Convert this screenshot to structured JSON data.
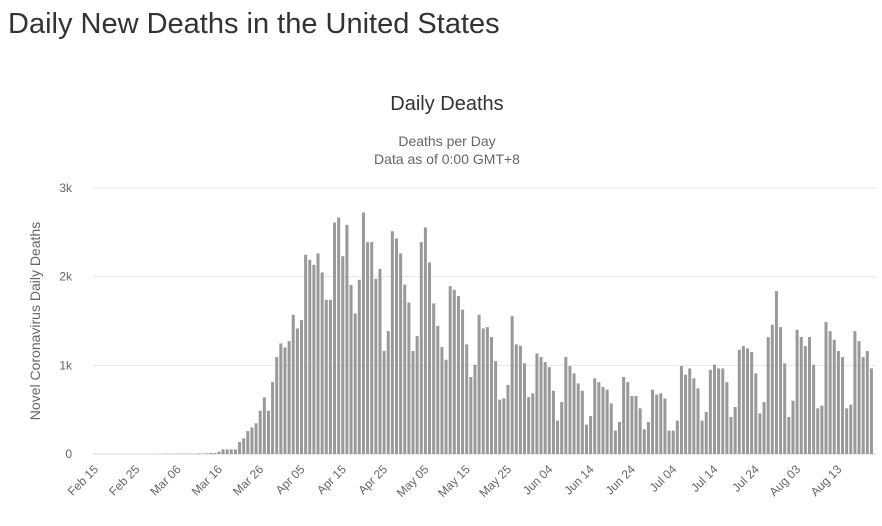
{
  "page": {
    "title": "Daily New Deaths in the United States"
  },
  "colors": {
    "bar": "#999999",
    "grid": "#e6e6e6",
    "axis": "#ccd6eb"
  },
  "chart_data": {
    "type": "bar",
    "title": "Daily Deaths",
    "subtitle": "Deaths per Day",
    "subtitle2": "Data as of 0:00 GMT+8",
    "xlabel": "",
    "ylabel": "Novel Coronavirus Daily Deaths",
    "start_date": "Feb 15",
    "ylim": [
      0,
      3000
    ],
    "yticks": [
      {
        "value": 0,
        "label": "0"
      },
      {
        "value": 1000,
        "label": "1k"
      },
      {
        "value": 2000,
        "label": "2k"
      },
      {
        "value": 3000,
        "label": "3k"
      }
    ],
    "xticks": [
      {
        "day": 0,
        "label": "Feb 15"
      },
      {
        "day": 10,
        "label": "Feb 25"
      },
      {
        "day": 20,
        "label": "Mar 06"
      },
      {
        "day": 30,
        "label": "Mar 16"
      },
      {
        "day": 40,
        "label": "Mar 26"
      },
      {
        "day": 50,
        "label": "Apr 05"
      },
      {
        "day": 60,
        "label": "Apr 15"
      },
      {
        "day": 70,
        "label": "Apr 25"
      },
      {
        "day": 80,
        "label": "May 05"
      },
      {
        "day": 90,
        "label": "May 15"
      },
      {
        "day": 100,
        "label": "May 25"
      },
      {
        "day": 110,
        "label": "Jun 04"
      },
      {
        "day": 120,
        "label": "Jun 14"
      },
      {
        "day": 130,
        "label": "Jun 24"
      },
      {
        "day": 140,
        "label": "Jul 04"
      },
      {
        "day": 150,
        "label": "Jul 14"
      },
      {
        "day": 160,
        "label": "Jul 24"
      },
      {
        "day": 170,
        "label": "Aug 03"
      },
      {
        "day": 180,
        "label": "Aug 13"
      }
    ],
    "grid": true,
    "legend": "none",
    "values": [
      0,
      0,
      0,
      0,
      0,
      0,
      0,
      0,
      0,
      0,
      0,
      0,
      0,
      0,
      1,
      1,
      0,
      5,
      1,
      2,
      4,
      3,
      2,
      4,
      3,
      7,
      5,
      7,
      12,
      10,
      26,
      52,
      52,
      52,
      52,
      135,
      177,
      259,
      300,
      346,
      488,
      639,
      488,
      811,
      1093,
      1247,
      1202,
      1273,
      1570,
      1416,
      1510,
      2247,
      2190,
      2134,
      2262,
      2048,
      1739,
      1739,
      2611,
      2667,
      2231,
      2585,
      1905,
      1585,
      1965,
      2724,
      2389,
      2389,
      1976,
      2088,
      1161,
      1386,
      2513,
      2431,
      2262,
      1910,
      1709,
      1161,
      1330,
      2389,
      2555,
      2160,
      1698,
      1446,
      1206,
      1063,
      1893,
      1852,
      1781,
      1627,
      1236,
      868,
      1007,
      1570,
      1416,
      1431,
      1319,
      1048,
      612,
      627,
      781,
      1555,
      1236,
      1221,
      1022,
      642,
      684,
      1134,
      1093,
      1037,
      980,
      713,
      376,
      586,
      1093,
      992,
      909,
      796,
      713,
      331,
      428,
      853,
      811,
      755,
      725,
      571,
      263,
      361,
      868,
      811,
      654,
      654,
      515,
      278,
      361,
      725,
      669,
      684,
      627,
      263,
      263,
      376,
      992,
      894,
      965,
      853,
      740,
      376,
      473,
      950,
      1007,
      965,
      965,
      811,
      417,
      530,
      1176,
      1217,
      1191,
      1150,
      909,
      458,
      586,
      1319,
      1458,
      1837,
      1431,
      1022,
      417,
      601,
      1401,
      1319,
      1217,
      1319,
      1007,
      515,
      545,
      1488,
      1386,
      1289,
      1161,
      1093,
      515,
      556,
      1386,
      1273,
      1093,
      1161,
      965
    ]
  }
}
